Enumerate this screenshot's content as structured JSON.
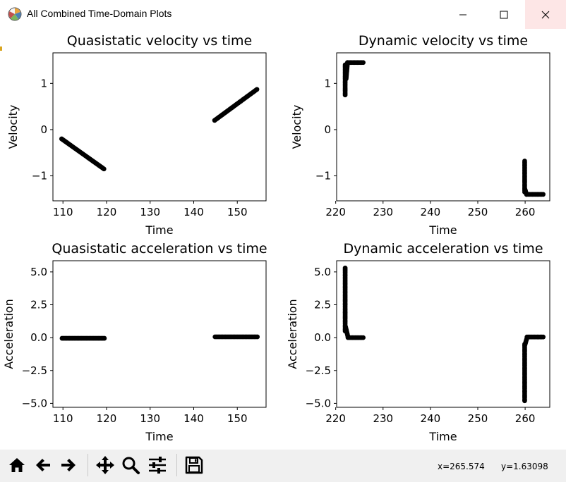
{
  "window": {
    "title": "All Combined Time-Domain Plots",
    "controls": [
      "minimize",
      "maximize",
      "close"
    ]
  },
  "toolbar": {
    "buttons": [
      "home-icon",
      "back-arrow-icon",
      "forward-arrow-icon",
      "pan-icon",
      "zoom-icon",
      "configure-subplots-icon",
      "save-icon"
    ]
  },
  "status": {
    "x": "x=265.574",
    "y": "y=1.63098"
  },
  "colors": {
    "marker": "#000000",
    "close_hover": "#fde6e6",
    "toolbar_bg": "#f0f0f0"
  },
  "chart_data": [
    {
      "type": "scatter",
      "title": "Quasistatic velocity vs time",
      "xlabel": "Time",
      "ylabel": "Velocity",
      "xlim": [
        107.7,
        156.6
      ],
      "ylim": [
        -1.54,
        1.66
      ],
      "xticks": [
        110,
        120,
        130,
        140,
        150
      ],
      "yticks": [
        -1,
        0,
        1
      ],
      "segments": [
        {
          "x": [
            109.7,
            119.4
          ],
          "y": [
            -0.2,
            -0.85
          ]
        },
        {
          "x": [
            144.8,
            154.5
          ],
          "y": [
            0.2,
            0.87
          ]
        }
      ]
    },
    {
      "type": "scatter",
      "title": "Dynamic velocity vs time",
      "xlabel": "Time",
      "ylabel": "Velocity",
      "xlim": [
        220.2,
        265.2
      ],
      "ylim": [
        -1.54,
        1.66
      ],
      "xticks": [
        220,
        230,
        240,
        250,
        260
      ],
      "yticks": [
        -1,
        0,
        1
      ],
      "segments": [
        {
          "x": [
            222.0,
            222.0
          ],
          "y": [
            0.75,
            1.4
          ]
        },
        {
          "x": [
            222.2,
            222.5
          ],
          "y": [
            1.1,
            1.45
          ]
        },
        {
          "x": [
            222.5,
            225.8
          ],
          "y": [
            1.45,
            1.45
          ]
        },
        {
          "x": [
            259.9,
            259.9
          ],
          "y": [
            -0.68,
            -1.35
          ]
        },
        {
          "x": [
            260.0,
            260.3
          ],
          "y": [
            -1.3,
            -1.4
          ]
        },
        {
          "x": [
            260.3,
            263.8
          ],
          "y": [
            -1.4,
            -1.4
          ]
        }
      ]
    },
    {
      "type": "scatter",
      "title": "Quasistatic acceleration vs time",
      "xlabel": "Time",
      "ylabel": "Acceleration",
      "xlim": [
        107.7,
        156.6
      ],
      "ylim": [
        -5.3,
        5.85
      ],
      "xticks": [
        110,
        120,
        130,
        140,
        150
      ],
      "yticks": [
        -5.0,
        -2.5,
        0.0,
        2.5,
        5.0
      ],
      "segments": [
        {
          "x": [
            109.8,
            119.5
          ],
          "y": [
            -0.05,
            -0.05
          ]
        },
        {
          "x": [
            144.9,
            154.6
          ],
          "y": [
            0.06,
            0.06
          ]
        }
      ]
    },
    {
      "type": "scatter",
      "title": "Dynamic acceleration vs time",
      "xlabel": "Time",
      "ylabel": "Acceleration",
      "xlim": [
        220.2,
        265.2
      ],
      "ylim": [
        -5.3,
        5.85
      ],
      "xticks": [
        220,
        230,
        240,
        250,
        260
      ],
      "yticks": [
        -5.0,
        -2.5,
        0.0,
        2.5,
        5.0
      ],
      "segments": [
        {
          "x": [
            222.0,
            222.0
          ],
          "y": [
            5.3,
            0.5
          ]
        },
        {
          "x": [
            222.1,
            222.6
          ],
          "y": [
            0.8,
            0.05
          ]
        },
        {
          "x": [
            222.6,
            225.8
          ],
          "y": [
            0.0,
            0.0
          ]
        },
        {
          "x": [
            259.9,
            259.9
          ],
          "y": [
            -4.8,
            -0.5
          ]
        },
        {
          "x": [
            260.0,
            260.4
          ],
          "y": [
            -0.5,
            0.0
          ]
        },
        {
          "x": [
            260.4,
            263.8
          ],
          "y": [
            0.05,
            0.05
          ]
        }
      ]
    }
  ]
}
